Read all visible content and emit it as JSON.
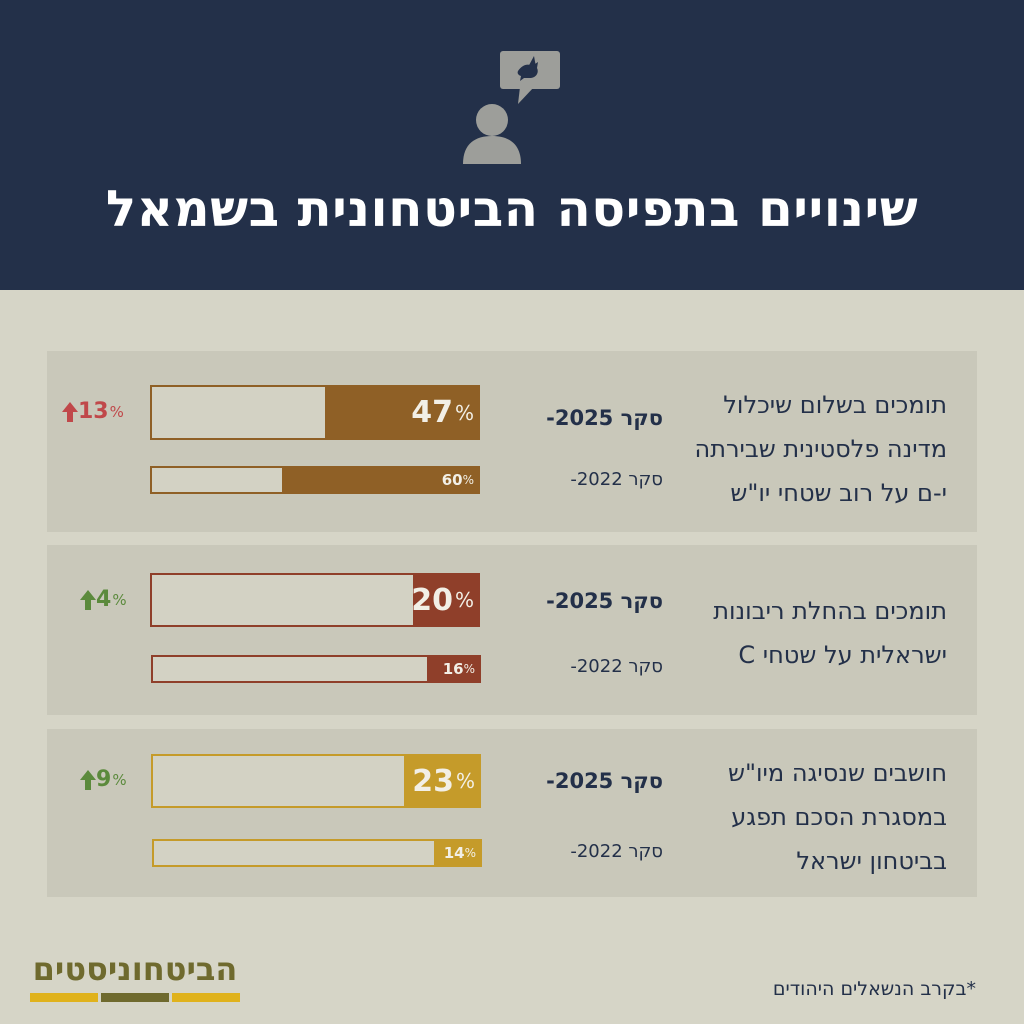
{
  "title": "שינויים בתפיסה הביטחונית בשמאל",
  "header_icon": "person-speech-bubble-dove-icon",
  "colors": {
    "header_bg": "#233049",
    "page_bg": "#d6d5c7",
    "up_red": "#c0484a",
    "up_green": "#5b8a3c"
  },
  "chart_data": {
    "type": "bar",
    "series": [
      {
        "name": "סקר 2025-",
        "values": [
          47,
          20,
          23
        ]
      },
      {
        "name": "סקר 2022-",
        "values": [
          60,
          16,
          14
        ]
      }
    ],
    "categories": [
      "תומכים בשלום שיכלול מדינה פלסטינית שבירתה י-ם על רוב שטחי יו\"ש",
      "תומכים בהחלת ריבונות ישראלית על שטחי  C",
      "חושבים שנסיגה מיו\"ש במסגרת הסכם תפגע בביטחון ישראל"
    ],
    "ylim": [
      0,
      100
    ],
    "unit": "%",
    "rows": [
      {
        "label_lines": [
          "תומכים בשלום שיכלול",
          "מדינה פלסטינית שבירתה",
          "י-ם על רוב שטחי יו\"ש"
        ],
        "v2025": 47,
        "v2022": 60,
        "change": "13",
        "color": "#8f6026",
        "change_color": "#c0484a"
      },
      {
        "label_lines": [
          "תומכים בהחלת ריבונות",
          "ישראלית על שטחי  C"
        ],
        "v2025": 20,
        "v2022": 16,
        "change": "4",
        "color": "#8f3f2a",
        "change_color": "#5b8a3c"
      },
      {
        "label_lines": [
          "חושבים שנסיגה מיו\"ש",
          "במסגרת הסכם תפגע",
          "בביטחון ישראל"
        ],
        "v2025": 23,
        "v2022": 14,
        "change": "9",
        "color": "#c59b2a",
        "change_color": "#5b8a3c"
      }
    ],
    "survey_2025_label": "סקר 2025-",
    "survey_2022_label": "סקר 2022-",
    "percent_sign": "%",
    "change_arrow": "up"
  },
  "logo": {
    "text": "הביטחוניסטים",
    "colors": [
      "#e0b21c",
      "#6f6a2e",
      "#e0b21c"
    ]
  },
  "footnote": "*בקרב הנשאלים היהודים"
}
